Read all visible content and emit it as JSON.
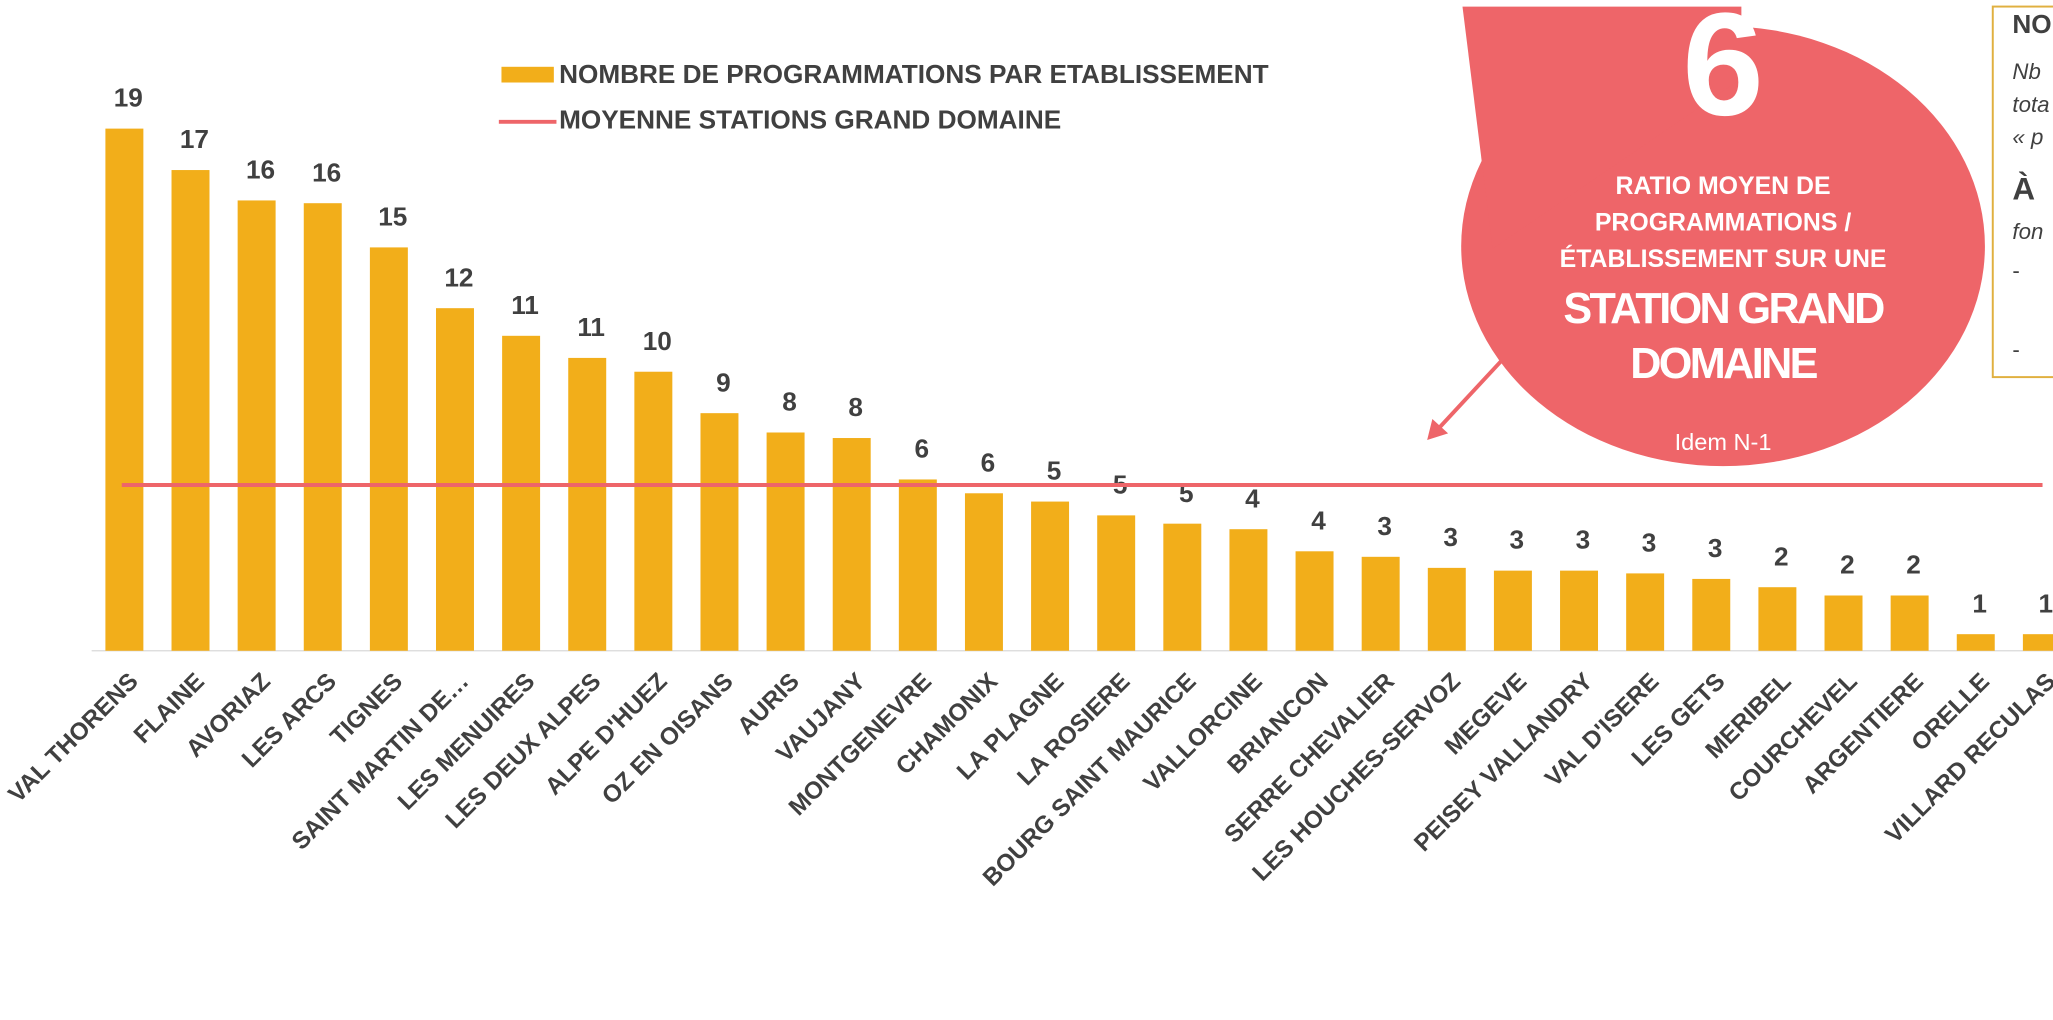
{
  "chart_data": {
    "type": "bar",
    "categories": [
      "VAL THORENS",
      "FLAINE",
      "AVORIAZ",
      "LES ARCS",
      "TIGNES",
      "SAINT MARTIN DE…",
      "LES MENUIRES",
      "LES DEUX ALPES",
      "ALPE D'HUEZ",
      "OZ EN OISANS",
      "AURIS",
      "VAUJANY",
      "MONTGENEVRE",
      "CHAMONIX",
      "LA PLAGNE",
      "LA ROSIERE",
      "BOURG SAINT MAURICE",
      "VALLORCINE",
      "BRIANCON",
      "SERRE CHEVALIER",
      "LES HOUCHES-SERVOZ",
      "MEGEVE",
      "PEISEY VALLANDRY",
      "VAL D'ISERE",
      "LES GETS",
      "MERIBEL",
      "COURCHEVEL",
      "ARGENTIERE",
      "ORELLE",
      "VILLARD RECULAS"
    ],
    "series": [
      {
        "name": "NOMBRE DE PROGRAMMATIONS PAR ETABLISSEMENT",
        "color": "#f2ae1a",
        "values": [
          18.9,
          17.4,
          16.3,
          16.2,
          14.6,
          12.4,
          11.4,
          10.6,
          10.1,
          8.6,
          7.9,
          7.7,
          6.2,
          5.7,
          5.4,
          4.9,
          4.6,
          4.4,
          3.6,
          3.4,
          3.0,
          2.9,
          2.9,
          2.8,
          2.6,
          2.3,
          2.0,
          2.0,
          0.6,
          0.6
        ],
        "value_labels": [
          "19",
          "17",
          "16",
          "16",
          "15",
          "12",
          "11",
          "11",
          "10",
          "9",
          "8",
          "8",
          "6",
          "6",
          "5",
          "5",
          "5",
          "4",
          "4",
          "3",
          "3",
          "3",
          "3",
          "3",
          "3",
          "2",
          "2",
          "2",
          "1",
          "1"
        ]
      }
    ],
    "average": {
      "name": "MOYENNE STATIONS GRAND DOMAINE",
      "value": 6,
      "color": "#ee6569"
    },
    "ylim": [
      0,
      20
    ],
    "callout": {
      "lines": [
        "RATIO MOYEN DE",
        "PROGRAMMATIONS /",
        "ÉTABLISSEMENT SUR UNE"
      ],
      "emphasis": [
        "STATION GRAND",
        "DOMAINE"
      ],
      "note": "Idem N-1"
    },
    "side_note": [
      "NO",
      "Nb",
      "tota",
      "« p",
      "À",
      "fon",
      "-",
      "-"
    ]
  }
}
